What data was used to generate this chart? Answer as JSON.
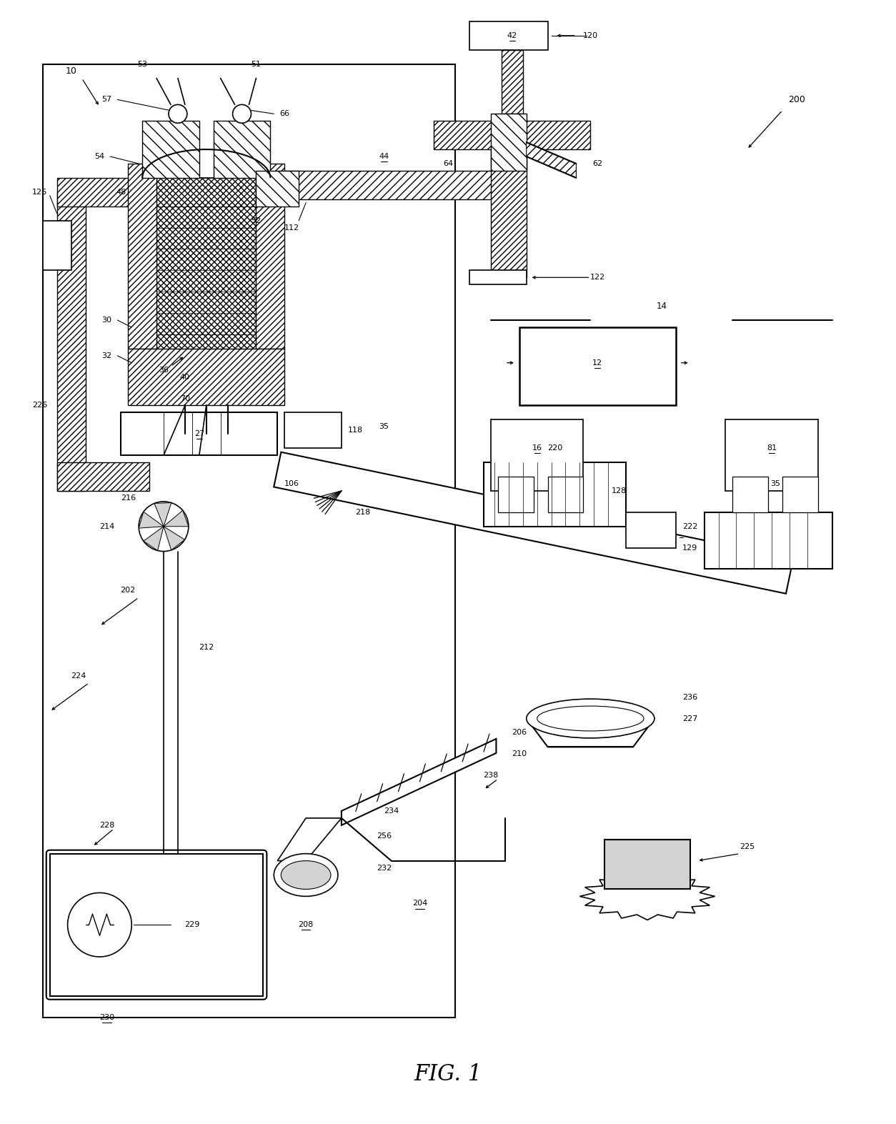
{
  "fig_w": 12.4,
  "fig_h": 15.6,
  "dpi": 100,
  "bg": "#ffffff"
}
